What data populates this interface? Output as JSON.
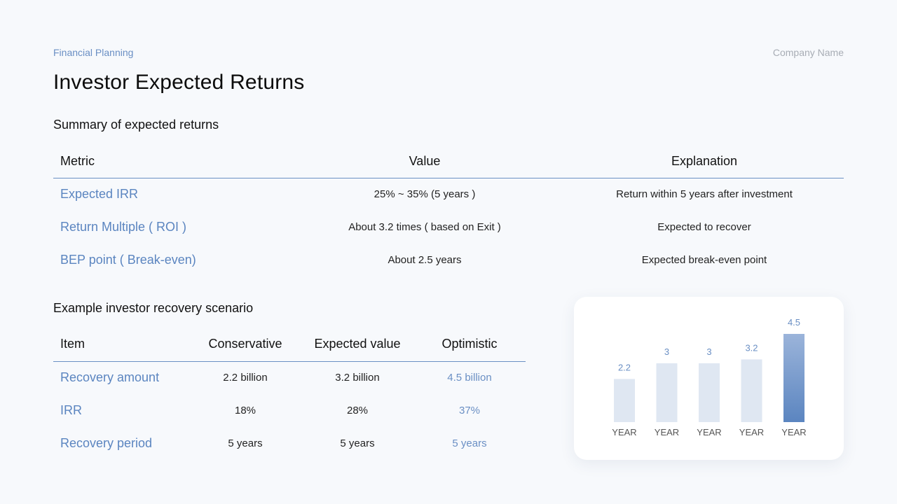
{
  "header": {
    "eyebrow": "Financial Planning",
    "company": "Company Name",
    "title": "Investor Expected Returns"
  },
  "summary": {
    "heading": "Summary of expected returns",
    "columns": [
      "Metric",
      "Value",
      "Explanation"
    ],
    "rows": [
      {
        "metric": "Expected IRR",
        "value": "25% ~ 35% (5 years )",
        "explanation": "Return within 5 years after investment"
      },
      {
        "metric": "Return Multiple ( ROI )",
        "value": "About 3.2 times ( based on Exit )",
        "explanation": "Expected to recover"
      },
      {
        "metric": "BEP point ( Break-even)",
        "value": "About 2.5 years",
        "explanation": "Expected break-even point"
      }
    ]
  },
  "scenario": {
    "heading": "Example investor recovery scenario",
    "columns": [
      "Item",
      "Conservative",
      "Expected value",
      "Optimistic"
    ],
    "rows": [
      {
        "item": "Recovery amount",
        "conservative": "2.2 billion",
        "expected": "3.2 billion",
        "optimistic": "4.5 billion"
      },
      {
        "item": "IRR",
        "conservative": "18%",
        "expected": "28%",
        "optimistic": "37%"
      },
      {
        "item": "Recovery period",
        "conservative": "5 years",
        "expected": "5 years",
        "optimistic": "5 years"
      }
    ]
  },
  "colors": {
    "accent": "#6a8fc4",
    "bar_light": "#dfe7f2",
    "bar_dark_top": "#9bb4da",
    "bar_dark_bottom": "#5b85c0"
  },
  "chart_data": {
    "type": "bar",
    "categories": [
      "YEAR",
      "YEAR",
      "YEAR",
      "YEAR",
      "YEAR"
    ],
    "values": [
      2.2,
      3,
      3,
      3.2,
      4.5
    ],
    "value_labels": [
      "2.2",
      "3",
      "3",
      "3.2",
      "4.5"
    ],
    "highlight_index": 4,
    "ylim": [
      0,
      4.5
    ],
    "grid": false,
    "legend": "none"
  }
}
